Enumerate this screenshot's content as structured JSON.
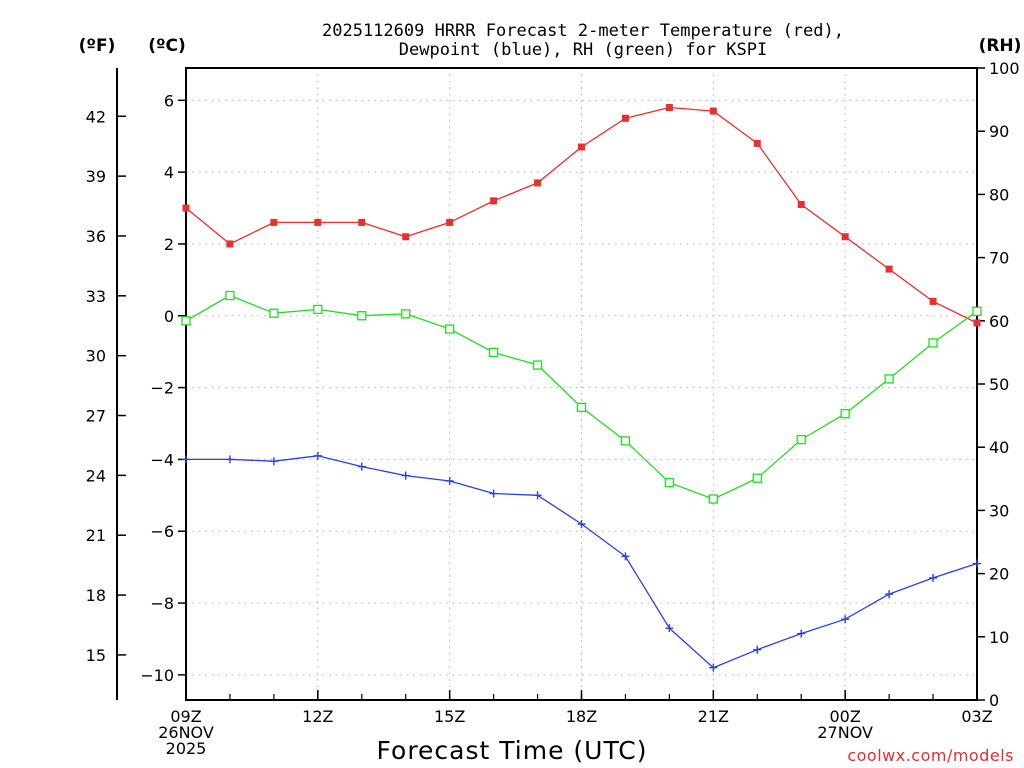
{
  "chart_data": {
    "type": "line",
    "title_lines": [
      "2025112609 HRRR Forecast 2-meter Temperature (red),",
      "Dewpoint (blue), RH (green) for KSPI"
    ],
    "unit_labels": {
      "fahrenheit": "(ºF)",
      "celsius": "(ºC)",
      "rh": "(RH)"
    },
    "xlabel": "Forecast Time (UTC)",
    "credit": "coolwx.com/models",
    "x_hours": [
      0,
      1,
      2,
      3,
      4,
      5,
      6,
      7,
      8,
      9,
      10,
      11,
      12,
      13,
      14,
      15,
      16,
      17,
      18
    ],
    "x_ticks": [
      {
        "hour": 0,
        "lines": [
          "09Z",
          "26NOV",
          "2025"
        ]
      },
      {
        "hour": 3,
        "lines": [
          "12Z"
        ]
      },
      {
        "hour": 6,
        "lines": [
          "15Z"
        ]
      },
      {
        "hour": 9,
        "lines": [
          "18Z"
        ]
      },
      {
        "hour": 12,
        "lines": [
          "21Z"
        ]
      },
      {
        "hour": 15,
        "lines": [
          "00Z",
          "27NOV"
        ]
      },
      {
        "hour": 18,
        "lines": [
          "03Z"
        ]
      }
    ],
    "ylim_celsius": [
      -10.7,
      6.9
    ],
    "ylim_rh": [
      0,
      100
    ],
    "celsius_ticks": [
      "6",
      "4",
      "2",
      "0",
      "−2",
      "−4",
      "−6",
      "−8",
      "−10"
    ],
    "fahrenheit_ticks": [
      "42",
      "39",
      "36",
      "33",
      "30",
      "27",
      "24",
      "21",
      "18",
      "15"
    ],
    "rh_ticks": [
      "100",
      "90",
      "80",
      "70",
      "60",
      "50",
      "40",
      "30",
      "20",
      "10",
      "0"
    ],
    "grid": true,
    "series": [
      {
        "name": "2-meter Temperature",
        "axis": "celsius",
        "color": "#e83030",
        "marker": "filled-square",
        "values": [
          3.0,
          2.0,
          2.6,
          2.6,
          2.6,
          2.2,
          2.6,
          3.2,
          3.7,
          4.7,
          5.5,
          5.8,
          5.7,
          4.8,
          3.1,
          2.2,
          1.3,
          0.4,
          -0.2
        ]
      },
      {
        "name": "Dewpoint",
        "axis": "celsius",
        "color": "#2a3fe0",
        "marker": "plus",
        "values": [
          -4.0,
          -4.0,
          -4.05,
          -3.9,
          -4.2,
          -4.45,
          -4.6,
          -4.95,
          -5.0,
          -5.8,
          -6.7,
          -8.7,
          -9.8,
          -9.3,
          -8.85,
          -8.45,
          -7.75,
          -7.3,
          -6.9
        ]
      },
      {
        "name": "RH",
        "axis": "rh",
        "color": "#22dd22",
        "marker": "open-square",
        "values": [
          60,
          64,
          61.2,
          61.8,
          60.8,
          61.1,
          58.7,
          55,
          53,
          46.3,
          41,
          34.4,
          31.8,
          35.1,
          41.2,
          45.3,
          50.8,
          56.5,
          61.5
        ]
      }
    ]
  }
}
